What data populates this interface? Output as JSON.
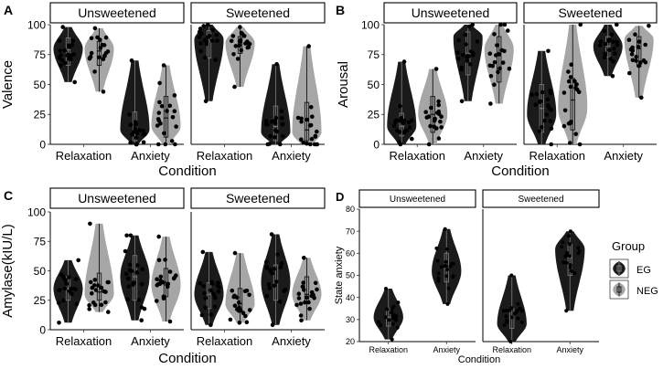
{
  "colors": {
    "EG": "#1a1a1a",
    "NEG": "#a6a6a6",
    "point": "#000000",
    "strip_fill": "#ffffff",
    "strip_stroke": "#000000"
  },
  "legend": {
    "title": "Group",
    "items": [
      "EG",
      "NEG"
    ]
  },
  "chart_data": [
    {
      "id": "A",
      "label": "A",
      "type": "violin",
      "ylabel": "Valence",
      "xlabel": "Condition",
      "ylim": [
        0,
        100
      ],
      "yticks": [
        0,
        25,
        50,
        75,
        100
      ],
      "facets": [
        "Unsweetened",
        "Sweetened"
      ],
      "categories": [
        "Relaxation",
        "Anxiety"
      ],
      "violins": [
        {
          "facet": 0,
          "cat": 0,
          "group": "EG",
          "min": 52,
          "max": 98,
          "q1": 66,
          "median": 79,
          "q3": 89,
          "mode": 80
        },
        {
          "facet": 0,
          "cat": 0,
          "group": "NEG",
          "min": 44,
          "max": 97,
          "q1": 66,
          "median": 78,
          "q3": 86,
          "mode": 80
        },
        {
          "facet": 0,
          "cat": 1,
          "group": "EG",
          "min": 0,
          "max": 70,
          "q1": 3,
          "median": 13,
          "q3": 27,
          "mode": 12
        },
        {
          "facet": 0,
          "cat": 1,
          "group": "NEG",
          "min": 0,
          "max": 66,
          "q1": 6,
          "median": 22,
          "q3": 40,
          "mode": 15
        },
        {
          "facet": 1,
          "cat": 0,
          "group": "EG",
          "min": 36,
          "max": 100,
          "q1": 72,
          "median": 86,
          "q3": 95,
          "mode": 88
        },
        {
          "facet": 1,
          "cat": 0,
          "group": "NEG",
          "min": 48,
          "max": 98,
          "q1": 76,
          "median": 84,
          "q3": 90,
          "mode": 85
        },
        {
          "facet": 1,
          "cat": 1,
          "group": "EG",
          "min": 0,
          "max": 67,
          "q1": 3,
          "median": 15,
          "q3": 32,
          "mode": 10
        },
        {
          "facet": 1,
          "cat": 1,
          "group": "NEG",
          "min": 0,
          "max": 82,
          "q1": 3,
          "median": 12,
          "q3": 35,
          "mode": 10
        }
      ]
    },
    {
      "id": "B",
      "label": "B",
      "type": "violin",
      "ylabel": "Arousal",
      "xlabel": "Condition",
      "ylim": [
        0,
        100
      ],
      "yticks": [
        0,
        25,
        50,
        75,
        100
      ],
      "facets": [
        "Unsweetened",
        "Sweetened"
      ],
      "categories": [
        "Relaxation",
        "Anxiety"
      ],
      "violins": [
        {
          "facet": 0,
          "cat": 0,
          "group": "EG",
          "min": 0,
          "max": 69,
          "q1": 7,
          "median": 15,
          "q3": 26,
          "mode": 15
        },
        {
          "facet": 0,
          "cat": 0,
          "group": "NEG",
          "min": 0,
          "max": 63,
          "q1": 10,
          "median": 25,
          "q3": 40,
          "mode": 25
        },
        {
          "facet": 0,
          "cat": 1,
          "group": "EG",
          "min": 36,
          "max": 100,
          "q1": 58,
          "median": 76,
          "q3": 94,
          "mode": 90
        },
        {
          "facet": 0,
          "cat": 1,
          "group": "NEG",
          "min": 34,
          "max": 100,
          "q1": 52,
          "median": 74,
          "q3": 90,
          "mode": 80
        },
        {
          "facet": 1,
          "cat": 0,
          "group": "EG",
          "min": 0,
          "max": 78,
          "q1": 10,
          "median": 30,
          "q3": 50,
          "mode": 25
        },
        {
          "facet": 1,
          "cat": 0,
          "group": "NEG",
          "min": 0,
          "max": 100,
          "q1": 12,
          "median": 37,
          "q3": 55,
          "mode": 30
        },
        {
          "facet": 1,
          "cat": 1,
          "group": "EG",
          "min": 57,
          "max": 100,
          "q1": 73,
          "median": 82,
          "q3": 90,
          "mode": 82
        },
        {
          "facet": 1,
          "cat": 1,
          "group": "NEG",
          "min": 39,
          "max": 99,
          "q1": 65,
          "median": 80,
          "q3": 90,
          "mode": 88
        }
      ]
    },
    {
      "id": "C",
      "label": "C",
      "type": "violin",
      "ylabel": "Amylase(kIU/L)",
      "xlabel": "Condition",
      "ylim": [
        0,
        100
      ],
      "yticks": [
        0,
        25,
        50,
        75,
        100
      ],
      "facets": [
        "Unsweetened",
        "Sweetened"
      ],
      "categories": [
        "Relaxation",
        "Anxiety"
      ],
      "violins": [
        {
          "facet": 0,
          "cat": 0,
          "group": "EG",
          "min": 6,
          "max": 59,
          "q1": 25,
          "median": 35,
          "q3": 45,
          "mode": 35
        },
        {
          "facet": 0,
          "cat": 0,
          "group": "NEG",
          "min": 15,
          "max": 90,
          "q1": 25,
          "median": 32,
          "q3": 48,
          "mode": 30
        },
        {
          "facet": 0,
          "cat": 1,
          "group": "EG",
          "min": 8,
          "max": 80,
          "q1": 25,
          "median": 45,
          "q3": 63,
          "mode": 45
        },
        {
          "facet": 0,
          "cat": 1,
          "group": "NEG",
          "min": 7,
          "max": 79,
          "q1": 28,
          "median": 38,
          "q3": 52,
          "mode": 38
        },
        {
          "facet": 1,
          "cat": 0,
          "group": "EG",
          "min": 4,
          "max": 66,
          "q1": 18,
          "median": 30,
          "q3": 40,
          "mode": 30
        },
        {
          "facet": 1,
          "cat": 0,
          "group": "NEG",
          "min": 6,
          "max": 65,
          "q1": 15,
          "median": 22,
          "q3": 35,
          "mode": 22
        },
        {
          "facet": 1,
          "cat": 1,
          "group": "EG",
          "min": 4,
          "max": 81,
          "q1": 25,
          "median": 40,
          "q3": 55,
          "mode": 40
        },
        {
          "facet": 1,
          "cat": 1,
          "group": "NEG",
          "min": 8,
          "max": 61,
          "q1": 22,
          "median": 30,
          "q3": 45,
          "mode": 30
        }
      ]
    },
    {
      "id": "D",
      "label": "D",
      "type": "violin",
      "ylabel": "State anxiety",
      "xlabel": "Condition",
      "ylim": [
        20,
        80
      ],
      "yticks": [
        20,
        30,
        40,
        50,
        60,
        70,
        80
      ],
      "facets": [
        "Unsweetened",
        "Sweetened"
      ],
      "categories": [
        "Relaxation",
        "Anxiety"
      ],
      "violins": [
        {
          "facet": 0,
          "cat": 0,
          "group": "EG",
          "min": 21,
          "max": 44,
          "q1": 27,
          "median": 31,
          "q3": 35,
          "mode": 31
        },
        {
          "facet": 0,
          "cat": 1,
          "group": "EG",
          "min": 37,
          "max": 71,
          "q1": 47,
          "median": 53,
          "q3": 60,
          "mode": 52
        },
        {
          "facet": 1,
          "cat": 0,
          "group": "EG",
          "min": 20,
          "max": 50,
          "q1": 26,
          "median": 31,
          "q3": 35,
          "mode": 28
        },
        {
          "facet": 1,
          "cat": 1,
          "group": "EG",
          "min": 34,
          "max": 70,
          "q1": 50,
          "median": 58,
          "q3": 64,
          "mode": 62
        }
      ]
    }
  ]
}
